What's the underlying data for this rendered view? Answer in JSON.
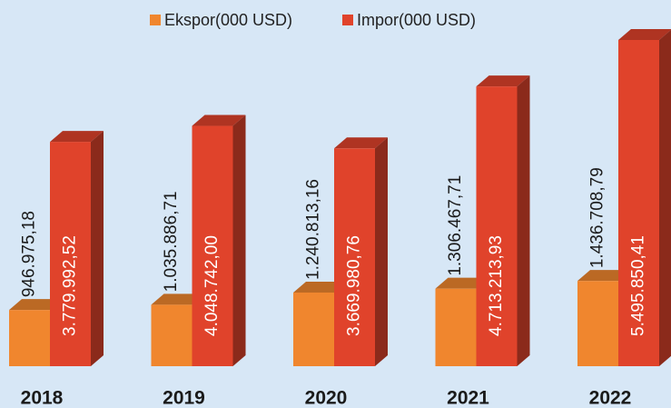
{
  "chart_data": {
    "type": "bar",
    "categories": [
      "2018",
      "2019",
      "2020",
      "2021",
      "2022"
    ],
    "series": [
      {
        "name": "Ekspor(000 USD)",
        "color": "#f0862e",
        "values": [
          946975.18,
          1035886.71,
          1240813.16,
          1306467.71,
          1436708.79
        ],
        "value_labels": [
          "946.975,18",
          "1.035.886,71",
          "1.240.813,16",
          "1.306.467,71",
          "1.436.708,79"
        ]
      },
      {
        "name": "Impor(000 USD)",
        "color": "#e0432b",
        "values": [
          3779992.52,
          4048742.0,
          3669980.76,
          4713213.93,
          5495850.41
        ],
        "value_labels": [
          "3.779.992,52",
          "4.048.742,00",
          "3.669.980,76",
          "4.713.213,93",
          "5.495.850,41"
        ]
      }
    ],
    "legend": "top"
  }
}
